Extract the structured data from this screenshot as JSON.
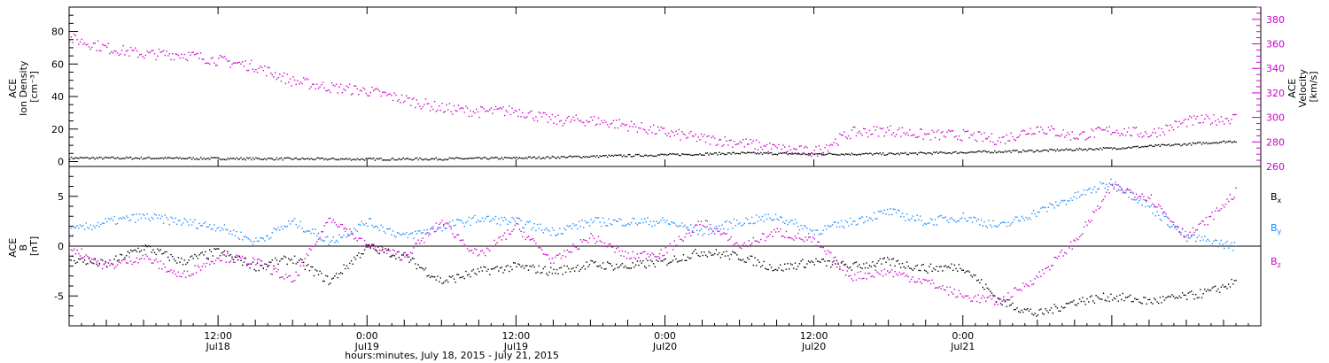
{
  "colors": {
    "black": "#000000",
    "magenta": "#cc00cc",
    "blue": "#1a8cff",
    "background": "#ffffff"
  },
  "chart_data": [
    {
      "type": "scatter",
      "panel": "top",
      "left_ylabel_lines": [
        "ACE",
        "Ion Density",
        "[cm⁻³]"
      ],
      "right_ylabel_lines": [
        "ACE",
        "Velocity",
        "[km/s]"
      ],
      "xlim_hours": [
        0,
        96
      ],
      "ylim_left": [
        -3,
        95
      ],
      "ylim_right": [
        260,
        390
      ],
      "left_ticks": [
        0,
        20,
        40,
        60,
        80
      ],
      "right_ticks": [
        260,
        280,
        300,
        320,
        340,
        360,
        380
      ],
      "series": [
        {
          "axis": "left",
          "color": "#000000",
          "x_hours": [
            0,
            6,
            12,
            18,
            24,
            30,
            36,
            42,
            48,
            54,
            60,
            66,
            72,
            78,
            84,
            90,
            94
          ],
          "values": [
            2.5,
            2.5,
            2.2,
            2.0,
            1.8,
            2.0,
            2.5,
            3.5,
            4.5,
            5.5,
            5.0,
            5.0,
            6.0,
            7.0,
            8.5,
            11.0,
            13.0
          ]
        },
        {
          "axis": "right",
          "color": "#cc00cc",
          "x_hours": [
            0,
            3,
            6,
            9,
            12,
            15,
            18,
            21,
            24,
            27,
            30,
            33,
            36,
            39,
            42,
            45,
            48,
            51,
            54,
            57,
            60,
            63,
            66,
            69,
            72,
            75,
            78,
            81,
            84,
            87,
            90,
            94
          ],
          "values": [
            365,
            357,
            352,
            352,
            347,
            342,
            330,
            325,
            322,
            315,
            308,
            305,
            306,
            298,
            298,
            294,
            288,
            283,
            280,
            275,
            272,
            288,
            290,
            286,
            286,
            282,
            292,
            285,
            290,
            287,
            297,
            300
          ]
        }
      ]
    },
    {
      "type": "scatter",
      "panel": "bottom",
      "left_ylabel_lines": [
        "ACE",
        "B",
        "[nT]"
      ],
      "xlim_hours": [
        0,
        96
      ],
      "ylim": [
        -8,
        8
      ],
      "ticks": [
        -5,
        0,
        5
      ],
      "zero_line": true,
      "legend_position": "right",
      "series": [
        {
          "name": "Bx",
          "color": "#000000",
          "x_hours": [
            0,
            3,
            6,
            9,
            12,
            15,
            18,
            21,
            24,
            27,
            30,
            33,
            36,
            39,
            42,
            45,
            48,
            51,
            54,
            57,
            60,
            63,
            66,
            69,
            72,
            75,
            78,
            81,
            84,
            87,
            90,
            92,
            94
          ],
          "values": [
            -1.2,
            -1.8,
            0.0,
            -1.5,
            -0.5,
            -2.0,
            -1.2,
            -3.5,
            0.0,
            -1.0,
            -3.5,
            -2.5,
            -2.0,
            -2.5,
            -1.8,
            -2.0,
            -1.5,
            -0.5,
            -1.0,
            -2.2,
            -1.5,
            -2.0,
            -1.5,
            -2.2,
            -2.0,
            -5.5,
            -6.8,
            -5.5,
            -5.0,
            -5.5,
            -5.0,
            -4.5,
            -3.5
          ]
        },
        {
          "name": "By",
          "color": "#1a8cff",
          "x_hours": [
            0,
            3,
            6,
            9,
            12,
            15,
            18,
            21,
            24,
            27,
            30,
            33,
            36,
            39,
            42,
            45,
            48,
            51,
            54,
            57,
            60,
            63,
            66,
            69,
            72,
            75,
            78,
            81,
            84,
            87,
            90,
            92,
            94
          ],
          "values": [
            1.5,
            2.5,
            3.0,
            2.5,
            2.0,
            0.5,
            2.5,
            0.5,
            2.5,
            1.0,
            2.0,
            2.8,
            2.5,
            1.5,
            2.5,
            2.5,
            2.5,
            1.5,
            2.5,
            3.0,
            1.5,
            2.5,
            3.5,
            2.5,
            3.0,
            2.0,
            3.5,
            5.0,
            6.5,
            4.0,
            1.0,
            0.5,
            0.0
          ]
        },
        {
          "name": "Bz",
          "color": "#cc00cc",
          "x_hours": [
            0,
            3,
            6,
            9,
            12,
            15,
            18,
            21,
            24,
            27,
            30,
            33,
            36,
            39,
            42,
            45,
            48,
            51,
            54,
            57,
            60,
            63,
            66,
            69,
            72,
            75,
            78,
            81,
            84,
            87,
            90,
            92,
            94
          ],
          "values": [
            0.0,
            -2.0,
            -1.0,
            -3.0,
            -1.0,
            -1.5,
            -3.5,
            3.0,
            0.0,
            -1.0,
            2.5,
            -1.0,
            2.0,
            -1.5,
            1.0,
            -1.0,
            -0.5,
            2.5,
            0.0,
            1.5,
            0.5,
            -3.0,
            -2.5,
            -3.5,
            -5.0,
            -5.5,
            -3.0,
            0.5,
            6.0,
            5.0,
            1.0,
            3.0,
            5.5
          ]
        }
      ]
    }
  ],
  "legend": {
    "bx_main": "B",
    "bx_sub": "x",
    "by_main": "B",
    "by_sub": "y",
    "bz_main": "B",
    "bz_sub": "z"
  },
  "x_axis": {
    "ticks": [
      {
        "hour": 12,
        "time": "12:00",
        "date": "Jul18"
      },
      {
        "hour": 24,
        "time": "0:00",
        "date": "Jul19"
      },
      {
        "hour": 36,
        "time": "12:00",
        "date": "Jul19"
      },
      {
        "hour": 48,
        "time": "0:00",
        "date": "Jul20"
      },
      {
        "hour": 60,
        "time": "12:00",
        "date": "Jul20"
      },
      {
        "hour": 72,
        "time": "0:00",
        "date": "Jul21"
      }
    ],
    "title": "hours:minutes, July 18, 2015 - July 21, 2015"
  }
}
